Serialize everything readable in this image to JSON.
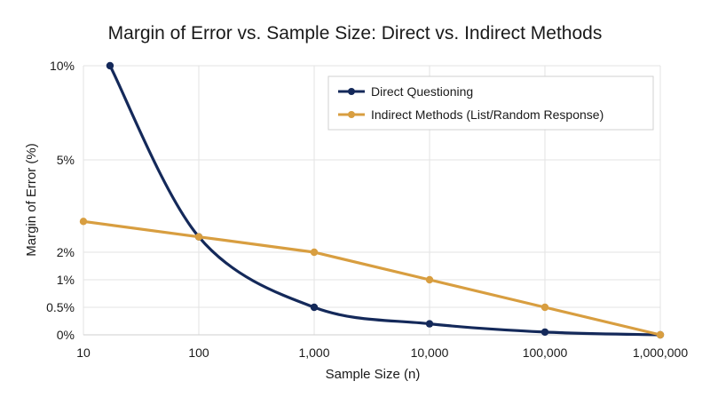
{
  "chart_data": {
    "type": "line",
    "title": "Margin of Error vs. Sample Size: Direct vs. Indirect Methods",
    "xlabel": "Sample Size (n)",
    "ylabel": "Margin of Error (%)",
    "x_scale": "log",
    "xlim": [
      10,
      1000000
    ],
    "x_ticks": [
      {
        "value": 10,
        "label": "10"
      },
      {
        "value": 100,
        "label": "100"
      },
      {
        "value": 1000,
        "label": "1,000"
      },
      {
        "value": 10000,
        "label": "10,000"
      },
      {
        "value": 100000,
        "label": "100,000"
      },
      {
        "value": 1000000,
        "label": "1,000,000"
      }
    ],
    "y_ticks": [
      "10%",
      "5%",
      "2%",
      "1%",
      "0.5%",
      "0%"
    ],
    "grid": true,
    "legend_position": "top-right",
    "series": [
      {
        "name": "Direct Questioning",
        "color": "#14295a",
        "points": [
          {
            "x": 17,
            "y": "10%"
          },
          {
            "x": 100,
            "y": "2.5%"
          },
          {
            "x": 1000,
            "y": "0.5%"
          },
          {
            "x": 10000,
            "y": "0.2%"
          },
          {
            "x": 100000,
            "y": "0.05%"
          },
          {
            "x": 1000000,
            "y": "0%"
          }
        ]
      },
      {
        "name": "Indirect Methods (List/Random Response)",
        "color": "#d89e40",
        "points": [
          {
            "x": 10,
            "y": "3%"
          },
          {
            "x": 100,
            "y": "2.5%"
          },
          {
            "x": 1000,
            "y": "2%"
          },
          {
            "x": 10000,
            "y": "1%"
          },
          {
            "x": 100000,
            "y": "0.5%"
          },
          {
            "x": 1000000,
            "y": "0%"
          }
        ]
      }
    ]
  }
}
